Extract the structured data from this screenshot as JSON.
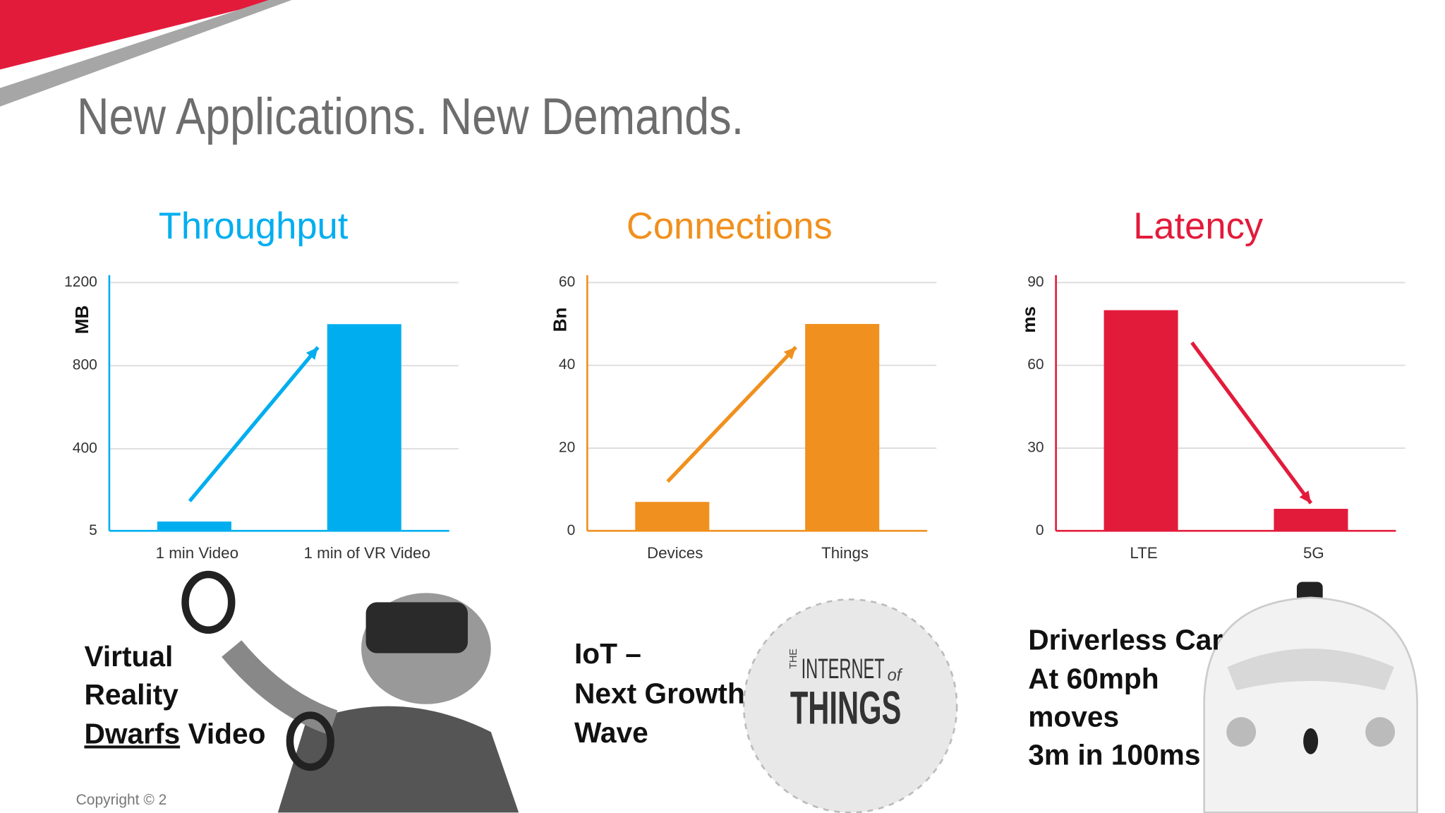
{
  "slide_title": "New Applications. New Demands.",
  "chart_data": [
    {
      "type": "bar",
      "title": "Throughput",
      "y_label": "MB",
      "color": "#00aeef",
      "categories": [
        "1 min Video",
        "1 min of VR Video"
      ],
      "values": [
        50,
        1000
      ],
      "ylim": [
        5,
        1200
      ],
      "yticks": [
        5,
        400,
        800,
        1200
      ],
      "grid": true
    },
    {
      "type": "bar",
      "title": "Connections",
      "y_label": "Bn",
      "color": "#f0901e",
      "categories": [
        "Devices",
        "Things"
      ],
      "values": [
        7,
        50
      ],
      "ylim": [
        0,
        60
      ],
      "yticks": [
        0,
        20,
        40,
        60
      ],
      "grid": true
    },
    {
      "type": "bar",
      "title": "Latency",
      "y_label": "ms",
      "color": "#e31b3b",
      "categories": [
        "LTE",
        "5G"
      ],
      "values": [
        80,
        8
      ],
      "ylim": [
        0,
        90
      ],
      "yticks": [
        0,
        30,
        60,
        90
      ],
      "grid": true
    }
  ],
  "captions": {
    "vr": {
      "lines": [
        "Virtual",
        "Reality"
      ],
      "emphasis": "Dwarfs",
      "tail": "Video"
    },
    "iot": {
      "lines": [
        "IoT –",
        "Next Growth",
        "Wave"
      ]
    },
    "car": {
      "lines": [
        "Driverless Car",
        "At 60mph",
        "moves",
        "3m in 100ms"
      ]
    }
  },
  "iot_graphic": {
    "prefix": "THE",
    "main": "INTERNET",
    "of": "of",
    "big": "THINGS"
  },
  "copyright": "Copyright © 2"
}
